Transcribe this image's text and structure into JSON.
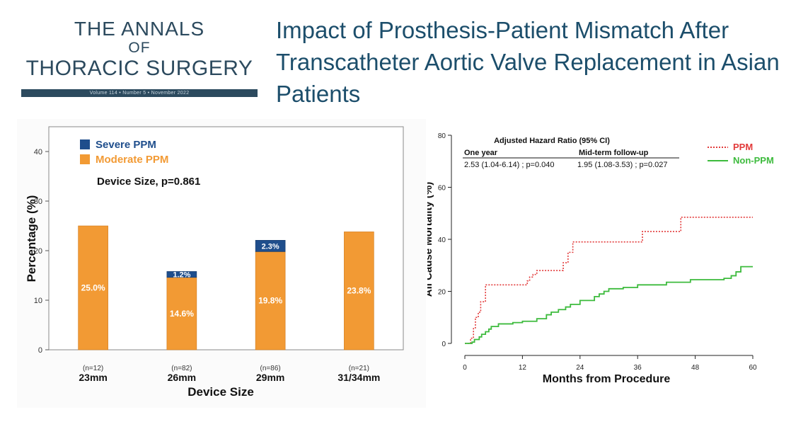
{
  "logo": {
    "line1": "THE ANNALS",
    "line2": "OF",
    "line3": "THORACIC SURGERY",
    "issue": "Volume 114  •  Number 5  •  November 2022"
  },
  "headline": "Impact of Prosthesis-Patient Mismatch After Transcatheter Aortic Valve Replacement in Asian Patients",
  "colors": {
    "brand": "#2c4a5e",
    "headline": "#1c4e6b",
    "severe": "#1f4e8c",
    "moderate": "#f29a34",
    "ppm_line": "#e23b3b",
    "nonppm_line": "#3dbb3d"
  },
  "chart_data": [
    {
      "type": "bar",
      "stacked": true,
      "title": "Device Size, p=0.861",
      "xlabel": "Device Size",
      "ylabel": "Percentage (%)",
      "ylim": [
        0,
        45
      ],
      "yticks": [
        0,
        10,
        20,
        30,
        40
      ],
      "categories": [
        "23mm",
        "26mm",
        "29mm",
        "31/34mm"
      ],
      "counts": [
        "(n=12)",
        "(n=82)",
        "(n=86)",
        "(n=21)"
      ],
      "series": [
        {
          "name": "Moderate PPM",
          "values": [
            25.0,
            14.6,
            19.8,
            23.8
          ],
          "labels": [
            "25.0%",
            "14.6%",
            "19.8%",
            "23.8%"
          ]
        },
        {
          "name": "Severe PPM",
          "values": [
            0,
            1.2,
            2.3,
            0
          ],
          "labels": [
            "",
            "1.2%",
            "2.3%",
            ""
          ]
        }
      ],
      "legend": [
        "Severe PPM",
        "Moderate PPM"
      ],
      "legend_position": "top-left"
    },
    {
      "type": "line",
      "step": true,
      "xlabel": "Months from Procedure",
      "ylabel": "All Cause Mortality (%)",
      "xlim": [
        0,
        60
      ],
      "ylim": [
        0,
        80
      ],
      "xticks": [
        0,
        12,
        24,
        36,
        48,
        60
      ],
      "yticks": [
        0,
        20,
        40,
        60,
        80
      ],
      "annotation": {
        "title": "Adjusted Hazard Ratio (95% CI)",
        "col1_header": "One year",
        "col2_header": "Mid-term follow-up",
        "col1_value": "2.53 (1.04-6.14) ; p=0.040",
        "col2_value": "1.95 (1.08-3.53) ; p=0.027"
      },
      "legend_position": "top-right",
      "series": [
        {
          "name": "PPM",
          "style": "dotted",
          "x": [
            0,
            1,
            1.2,
            1.8,
            2.2,
            2.8,
            3.3,
            4.3,
            9.0,
            13.0,
            13.5,
            14.2,
            15.0,
            20.0,
            20.5,
            21.5,
            22.5,
            24.5,
            28.0,
            35.0,
            37.0,
            40.0,
            45.0,
            52.0,
            60.0
          ],
          "y": [
            0,
            0,
            2,
            6,
            10,
            12,
            16,
            22.5,
            22.5,
            24,
            25.5,
            26.5,
            28,
            28,
            31,
            35,
            39,
            39,
            39,
            39,
            43,
            43,
            48.5,
            48.5,
            48.5
          ]
        },
        {
          "name": "Non-PPM",
          "style": "solid",
          "x": [
            0,
            1.5,
            2,
            3,
            3.5,
            4.3,
            5,
            5.5,
            7,
            10,
            12,
            15,
            17,
            18,
            19.5,
            21,
            22,
            24,
            27,
            28,
            29,
            30,
            33,
            36,
            42,
            47,
            54,
            55.5,
            56.5,
            57.5,
            60
          ],
          "y": [
            0,
            0.5,
            1.5,
            2.5,
            3.5,
            4.5,
            5.5,
            6.5,
            7.5,
            8,
            8.5,
            9.5,
            11,
            12,
            13,
            14,
            15,
            16.5,
            18,
            19,
            20,
            21,
            21.5,
            22.5,
            23.5,
            24.5,
            25,
            26,
            27.5,
            29.5,
            29.5
          ]
        }
      ]
    }
  ]
}
